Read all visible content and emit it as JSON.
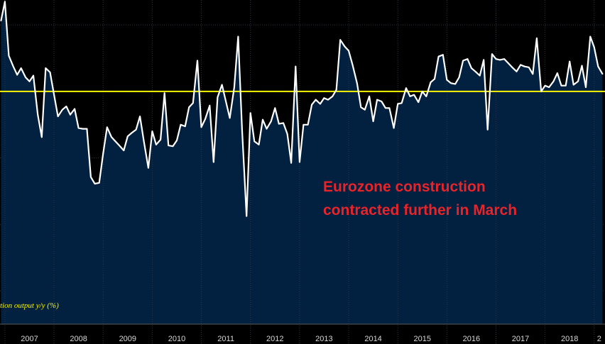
{
  "chart_data": {
    "type": "area",
    "series_label": "tion output y/y (%)",
    "annotation": [
      "Eurozone construction",
      "contracted further in March"
    ],
    "x_tick_labels": [
      "2007",
      "2008",
      "2009",
      "2010",
      "2011",
      "2012",
      "2013",
      "2014",
      "2015",
      "2016",
      "2017",
      "2018",
      "2"
    ],
    "x_range": [
      2006.9,
      2019.22
    ],
    "ylim": [
      -28,
      11
    ],
    "reference_line": {
      "y": 0,
      "color": "#f6f400"
    },
    "grid": true,
    "colors": {
      "background": "#000000",
      "fill": "#02203f",
      "line": "#ffffff",
      "grid": "#2e3440",
      "annotation": "#e8232a",
      "series_label": "#f3f000"
    },
    "series": [
      {
        "values": [
          [
            2006.92,
            8.5
          ],
          [
            2007.0,
            10.8
          ],
          [
            2007.08,
            4.3
          ],
          [
            2007.17,
            3.0
          ],
          [
            2007.25,
            2.0
          ],
          [
            2007.33,
            2.8
          ],
          [
            2007.42,
            1.7
          ],
          [
            2007.5,
            1.2
          ],
          [
            2007.58,
            1.9
          ],
          [
            2007.67,
            -2.8
          ],
          [
            2007.75,
            -5.5
          ],
          [
            2007.83,
            2.8
          ],
          [
            2007.92,
            2.3
          ],
          [
            2008.0,
            -0.4
          ],
          [
            2008.08,
            -3.0
          ],
          [
            2008.17,
            -2.2
          ],
          [
            2008.25,
            -1.8
          ],
          [
            2008.33,
            -2.8
          ],
          [
            2008.42,
            -2.1
          ],
          [
            2008.5,
            -4.4
          ],
          [
            2008.58,
            -4.5
          ],
          [
            2008.67,
            -4.5
          ],
          [
            2008.75,
            -10.3
          ],
          [
            2008.83,
            -11.1
          ],
          [
            2008.92,
            -11.0
          ],
          [
            2009.0,
            -7.5
          ],
          [
            2009.08,
            -4.3
          ],
          [
            2009.17,
            -5.5
          ],
          [
            2009.25,
            -6.0
          ],
          [
            2009.33,
            -6.5
          ],
          [
            2009.42,
            -7.1
          ],
          [
            2009.5,
            -5.4
          ],
          [
            2009.58,
            -5.0
          ],
          [
            2009.67,
            -4.6
          ],
          [
            2009.75,
            -3.0
          ],
          [
            2009.83,
            -6.0
          ],
          [
            2009.92,
            -9.2
          ],
          [
            2010.0,
            -4.8
          ],
          [
            2010.08,
            -6.4
          ],
          [
            2010.17,
            -5.8
          ],
          [
            2010.25,
            -0.2
          ],
          [
            2010.33,
            -6.5
          ],
          [
            2010.42,
            -6.6
          ],
          [
            2010.5,
            -5.9
          ],
          [
            2010.58,
            -4.0
          ],
          [
            2010.67,
            -4.2
          ],
          [
            2010.75,
            -1.9
          ],
          [
            2010.83,
            -1.4
          ],
          [
            2010.92,
            3.7
          ],
          [
            2011.0,
            -4.3
          ],
          [
            2011.08,
            -3.3
          ],
          [
            2011.17,
            -1.7
          ],
          [
            2011.25,
            -8.5
          ],
          [
            2011.33,
            -0.7
          ],
          [
            2011.42,
            0.8
          ],
          [
            2011.5,
            -1.2
          ],
          [
            2011.58,
            -3.2
          ],
          [
            2011.67,
            0.5
          ],
          [
            2011.75,
            6.6
          ],
          [
            2011.83,
            -4.6
          ],
          [
            2011.92,
            -15.0
          ],
          [
            2012.0,
            -2.6
          ],
          [
            2012.08,
            -6.0
          ],
          [
            2012.17,
            -6.4
          ],
          [
            2012.25,
            -3.4
          ],
          [
            2012.33,
            -4.5
          ],
          [
            2012.42,
            -3.6
          ],
          [
            2012.5,
            -2.0
          ],
          [
            2012.58,
            -3.9
          ],
          [
            2012.67,
            -3.8
          ],
          [
            2012.75,
            -5.1
          ],
          [
            2012.83,
            -8.6
          ],
          [
            2012.92,
            3.0
          ],
          [
            2013.0,
            -8.5
          ],
          [
            2013.08,
            -4.0
          ],
          [
            2013.17,
            -4.0
          ],
          [
            2013.25,
            -1.6
          ],
          [
            2013.33,
            -1.0
          ],
          [
            2013.42,
            -1.5
          ],
          [
            2013.5,
            -0.8
          ],
          [
            2013.58,
            -1.0
          ],
          [
            2013.67,
            -0.6
          ],
          [
            2013.75,
            0.2
          ],
          [
            2013.83,
            6.2
          ],
          [
            2013.92,
            5.4
          ],
          [
            2014.0,
            4.9
          ],
          [
            2014.08,
            3.2
          ],
          [
            2014.17,
            1.0
          ],
          [
            2014.25,
            -1.9
          ],
          [
            2014.33,
            -2.2
          ],
          [
            2014.42,
            -0.6
          ],
          [
            2014.5,
            -3.6
          ],
          [
            2014.58,
            -1.0
          ],
          [
            2014.67,
            -1.2
          ],
          [
            2014.75,
            -2.0
          ],
          [
            2014.83,
            -2.0
          ],
          [
            2014.92,
            -4.4
          ],
          [
            2015.0,
            -1.5
          ],
          [
            2015.08,
            -1.4
          ],
          [
            2015.17,
            0.4
          ],
          [
            2015.25,
            -0.6
          ],
          [
            2015.33,
            -0.4
          ],
          [
            2015.42,
            -1.3
          ],
          [
            2015.5,
            0.0
          ],
          [
            2015.58,
            -0.6
          ],
          [
            2015.67,
            1.1
          ],
          [
            2015.75,
            1.5
          ],
          [
            2015.83,
            4.2
          ],
          [
            2015.92,
            4.4
          ],
          [
            2016.0,
            1.4
          ],
          [
            2016.08,
            1.0
          ],
          [
            2016.17,
            0.9
          ],
          [
            2016.25,
            1.7
          ],
          [
            2016.33,
            3.7
          ],
          [
            2016.42,
            3.9
          ],
          [
            2016.5,
            2.8
          ],
          [
            2016.58,
            2.4
          ],
          [
            2016.67,
            1.9
          ],
          [
            2016.75,
            3.8
          ],
          [
            2016.83,
            -4.6
          ],
          [
            2016.92,
            4.5
          ],
          [
            2017.0,
            3.9
          ],
          [
            2017.08,
            3.8
          ],
          [
            2017.17,
            3.9
          ],
          [
            2017.25,
            3.4
          ],
          [
            2017.33,
            2.9
          ],
          [
            2017.42,
            2.4
          ],
          [
            2017.5,
            3.2
          ],
          [
            2017.58,
            3.0
          ],
          [
            2017.67,
            2.9
          ],
          [
            2017.75,
            2.1
          ],
          [
            2017.83,
            6.4
          ],
          [
            2017.92,
            0.0
          ],
          [
            2018.0,
            0.7
          ],
          [
            2018.08,
            0.5
          ],
          [
            2018.17,
            1.2
          ],
          [
            2018.25,
            2.2
          ],
          [
            2018.33,
            0.7
          ],
          [
            2018.42,
            0.7
          ],
          [
            2018.5,
            3.6
          ],
          [
            2018.58,
            0.8
          ],
          [
            2018.67,
            1.2
          ],
          [
            2018.75,
            3.1
          ],
          [
            2018.83,
            0.5
          ],
          [
            2018.92,
            6.6
          ],
          [
            2019.0,
            5.3
          ],
          [
            2019.08,
            3.0
          ],
          [
            2019.17,
            2.1
          ]
        ]
      }
    ]
  }
}
